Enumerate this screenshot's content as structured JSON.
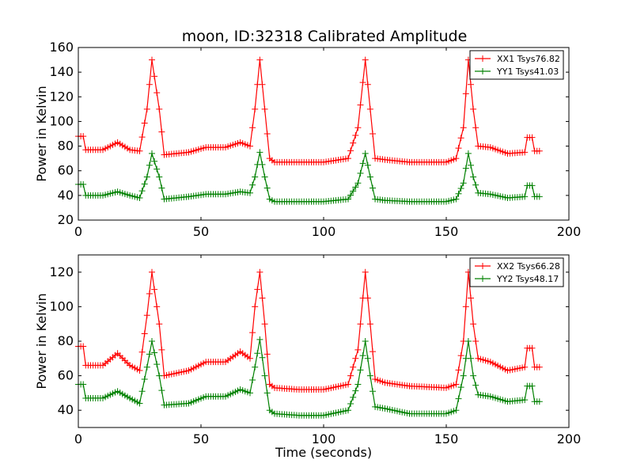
{
  "title": "moon, ID:32318 Calibrated Amplitude",
  "colors": {
    "xx": "#ff0000",
    "yy": "#008000"
  },
  "chart_data": [
    {
      "type": "line",
      "xlabel": "",
      "ylabel": "Power in Kelvin",
      "xlim": [
        0,
        200
      ],
      "ylim": [
        20,
        160
      ],
      "xticks": [
        0,
        50,
        100,
        150,
        200
      ],
      "yticks": [
        20,
        40,
        60,
        80,
        100,
        120,
        140,
        160
      ],
      "legend_position": "top-right",
      "marker": "+",
      "series": [
        {
          "name": "XX1 Tsys76.82",
          "color": "#ff0000",
          "points": [
            [
              0,
              88
            ],
            [
              2,
              88
            ],
            [
              3,
              77
            ],
            [
              10,
              77
            ],
            [
              16,
              83
            ],
            [
              21,
              77
            ],
            [
              25,
              76
            ],
            [
              28,
              110
            ],
            [
              30,
              150
            ],
            [
              33,
              110
            ],
            [
              35,
              73
            ],
            [
              45,
              75
            ],
            [
              52,
              79
            ],
            [
              60,
              79
            ],
            [
              66,
              83
            ],
            [
              70,
              80
            ],
            [
              72,
              110
            ],
            [
              74,
              150
            ],
            [
              76,
              110
            ],
            [
              78,
              70
            ],
            [
              80,
              67
            ],
            [
              90,
              67
            ],
            [
              100,
              67
            ],
            [
              110,
              70
            ],
            [
              114,
              95
            ],
            [
              117,
              150
            ],
            [
              119,
              110
            ],
            [
              121,
              70
            ],
            [
              125,
              69
            ],
            [
              135,
              67
            ],
            [
              150,
              67
            ],
            [
              154,
              70
            ],
            [
              157,
              95
            ],
            [
              159,
              150
            ],
            [
              161,
              110
            ],
            [
              163,
              80
            ],
            [
              168,
              79
            ],
            [
              175,
              74
            ],
            [
              182,
              75
            ],
            [
              183,
              87
            ],
            [
              185,
              87
            ],
            [
              186,
              76
            ],
            [
              188,
              76
            ]
          ]
        },
        {
          "name": "YY1 Tsys41.03",
          "color": "#008000",
          "points": [
            [
              0,
              49
            ],
            [
              2,
              49
            ],
            [
              3,
              40
            ],
            [
              10,
              40
            ],
            [
              16,
              43
            ],
            [
              21,
              40
            ],
            [
              25,
              38
            ],
            [
              28,
              55
            ],
            [
              30,
              74
            ],
            [
              33,
              55
            ],
            [
              35,
              37
            ],
            [
              45,
              39
            ],
            [
              52,
              41
            ],
            [
              60,
              41
            ],
            [
              66,
              43
            ],
            [
              70,
              42
            ],
            [
              72,
              55
            ],
            [
              74,
              75
            ],
            [
              76,
              55
            ],
            [
              78,
              37
            ],
            [
              80,
              35
            ],
            [
              90,
              35
            ],
            [
              100,
              35
            ],
            [
              110,
              37
            ],
            [
              114,
              50
            ],
            [
              117,
              74
            ],
            [
              119,
              55
            ],
            [
              121,
              37
            ],
            [
              125,
              36
            ],
            [
              135,
              35
            ],
            [
              150,
              35
            ],
            [
              154,
              37
            ],
            [
              157,
              50
            ],
            [
              159,
              74
            ],
            [
              161,
              55
            ],
            [
              163,
              42
            ],
            [
              168,
              41
            ],
            [
              175,
              38
            ],
            [
              182,
              39
            ],
            [
              183,
              48
            ],
            [
              185,
              48
            ],
            [
              186,
              39
            ],
            [
              188,
              39
            ]
          ]
        }
      ]
    },
    {
      "type": "line",
      "xlabel": "Time (seconds)",
      "ylabel": "Power in Kelvin",
      "xlim": [
        0,
        200
      ],
      "ylim": [
        30,
        130
      ],
      "xticks": [
        0,
        50,
        100,
        150,
        200
      ],
      "yticks": [
        40,
        60,
        80,
        100,
        120
      ],
      "legend_position": "top-right",
      "marker": "+",
      "series": [
        {
          "name": "XX2 Tsys66.28",
          "color": "#ff0000",
          "points": [
            [
              0,
              77
            ],
            [
              2,
              77
            ],
            [
              3,
              66
            ],
            [
              10,
              66
            ],
            [
              16,
              73
            ],
            [
              21,
              66
            ],
            [
              25,
              63
            ],
            [
              28,
              95
            ],
            [
              30,
              120
            ],
            [
              33,
              90
            ],
            [
              35,
              60
            ],
            [
              45,
              63
            ],
            [
              52,
              68
            ],
            [
              60,
              68
            ],
            [
              66,
              74
            ],
            [
              70,
              70
            ],
            [
              72,
              100
            ],
            [
              74,
              120
            ],
            [
              76,
              90
            ],
            [
              78,
              55
            ],
            [
              80,
              53
            ],
            [
              90,
              52
            ],
            [
              100,
              52
            ],
            [
              110,
              55
            ],
            [
              114,
              75
            ],
            [
              117,
              120
            ],
            [
              119,
              90
            ],
            [
              121,
              58
            ],
            [
              125,
              56
            ],
            [
              135,
              54
            ],
            [
              150,
              53
            ],
            [
              154,
              55
            ],
            [
              157,
              80
            ],
            [
              159,
              120
            ],
            [
              161,
              90
            ],
            [
              163,
              70
            ],
            [
              168,
              68
            ],
            [
              175,
              63
            ],
            [
              182,
              65
            ],
            [
              183,
              76
            ],
            [
              185,
              76
            ],
            [
              186,
              65
            ],
            [
              188,
              65
            ]
          ]
        },
        {
          "name": "YY2 Tsys48.17",
          "color": "#008000",
          "points": [
            [
              0,
              55
            ],
            [
              2,
              55
            ],
            [
              3,
              47
            ],
            [
              10,
              47
            ],
            [
              16,
              51
            ],
            [
              21,
              47
            ],
            [
              25,
              44
            ],
            [
              28,
              65
            ],
            [
              30,
              80
            ],
            [
              33,
              60
            ],
            [
              35,
              43
            ],
            [
              45,
              44
            ],
            [
              52,
              48
            ],
            [
              60,
              48
            ],
            [
              66,
              52
            ],
            [
              70,
              50
            ],
            [
              72,
              65
            ],
            [
              74,
              81
            ],
            [
              76,
              60
            ],
            [
              78,
              40
            ],
            [
              80,
              38
            ],
            [
              90,
              37
            ],
            [
              100,
              37
            ],
            [
              110,
              40
            ],
            [
              114,
              55
            ],
            [
              117,
              80
            ],
            [
              119,
              60
            ],
            [
              121,
              42
            ],
            [
              125,
              41
            ],
            [
              135,
              38
            ],
            [
              150,
              38
            ],
            [
              154,
              40
            ],
            [
              157,
              60
            ],
            [
              159,
              80
            ],
            [
              161,
              60
            ],
            [
              163,
              49
            ],
            [
              168,
              48
            ],
            [
              175,
              45
            ],
            [
              182,
              46
            ],
            [
              183,
              54
            ],
            [
              185,
              54
            ],
            [
              186,
              45
            ],
            [
              188,
              45
            ]
          ]
        }
      ]
    }
  ]
}
